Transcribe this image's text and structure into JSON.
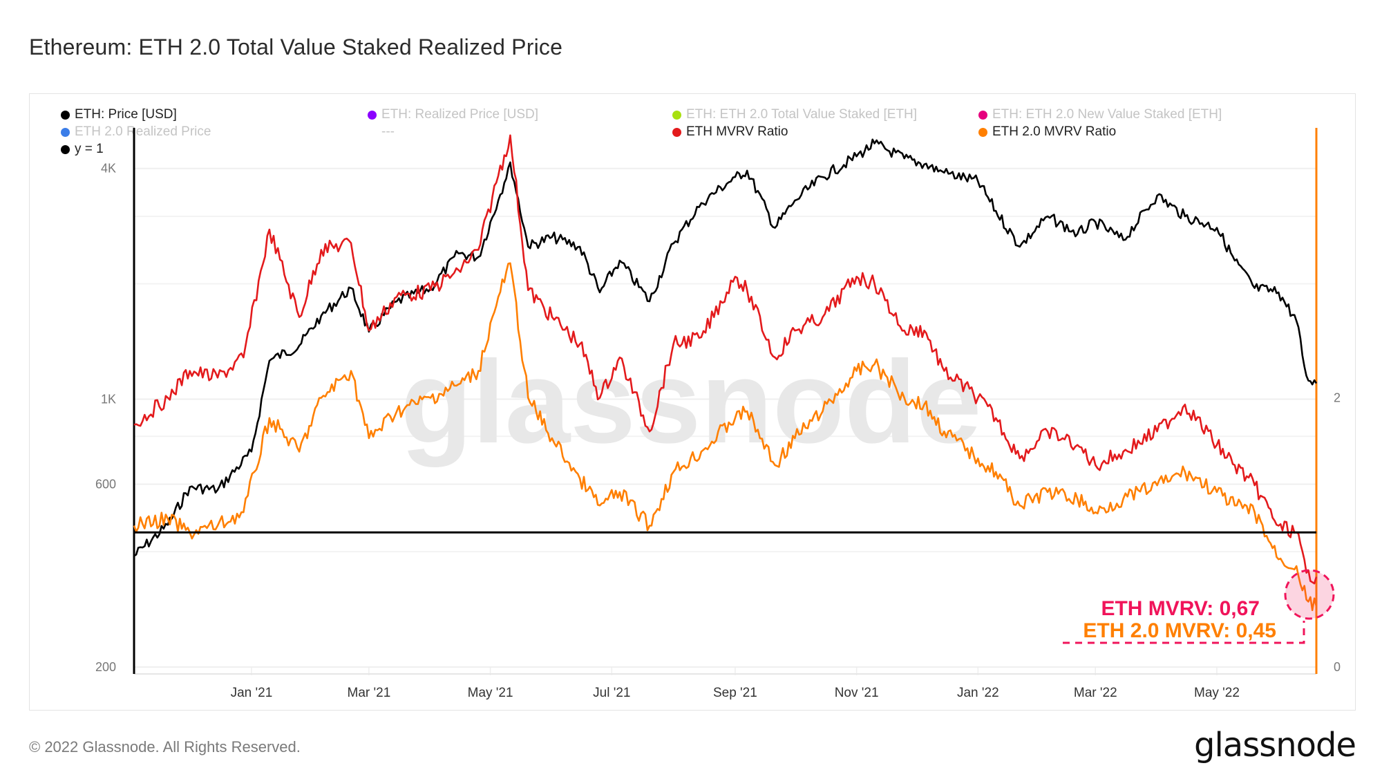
{
  "page": {
    "title": "Ethereum: ETH 2.0 Total Value Staked Realized Price",
    "footer": "© 2022 Glassnode. All Rights Reserved.",
    "logo": "glassnode",
    "watermark": "glassnode"
  },
  "legend": [
    {
      "label": "ETH: Price [USD]",
      "color": "#000000",
      "active": true
    },
    {
      "label": "ETH: Realized Price [USD]",
      "color": "#8b00ff",
      "active": false
    },
    {
      "label": "ETH: ETH 2.0 Total Value Staked [ETH]",
      "color": "#a8e00f",
      "active": false
    },
    {
      "label": "ETH: ETH 2.0 New Value Staked [ETH]",
      "color": "#e6007e",
      "active": false
    },
    {
      "label": "ETH 2.0 Realized Price",
      "color": "#3b7de8",
      "active": false
    },
    {
      "label": "---",
      "color": "",
      "active": false
    },
    {
      "label": "ETH MVRV Ratio",
      "color": "#e31a1c",
      "active": true
    },
    {
      "label": "ETH 2.0 MVRV Ratio",
      "color": "#ff7f00",
      "active": true
    },
    {
      "label": "y = 1",
      "color": "#000000",
      "active": true
    }
  ],
  "annotations": {
    "eth_mvrv": "ETH MVRV: 0,67",
    "eth2_mvrv": "ETH 2.0 MVRV: 0,45",
    "eth_mvrv_color": "#f0145a",
    "eth2_mvrv_color": "#ff7f00"
  },
  "chart_data": {
    "type": "line",
    "title": "Ethereum: ETH 2.0 Total Value Staked Realized Price",
    "x_tick_labels": [
      "Jan '21",
      "Mar '21",
      "May '21",
      "Jul '21",
      "Sep '21",
      "Nov '21",
      "Jan '22",
      "Mar '22",
      "May '22"
    ],
    "x_range": [
      "2020-11-03",
      "2022-06-20"
    ],
    "left_axis": {
      "scale": "log",
      "ticks": [
        200,
        600,
        1000,
        4000
      ],
      "tick_labels": [
        "200",
        "600",
        "1K",
        "4K"
      ],
      "range": [
        200,
        5000
      ]
    },
    "right_axis": {
      "scale": "linear",
      "ticks": [
        0,
        2
      ],
      "tick_labels": [
        "0",
        "2"
      ],
      "range": [
        0,
        3.98
      ]
    },
    "grid": true,
    "legend_position": "top",
    "series": [
      {
        "name": "ETH: Price [USD]",
        "axis": "left",
        "color": "#000000",
        "x": [
          "2020-11-03",
          "2020-11-20",
          "2020-12-01",
          "2020-12-15",
          "2021-01-01",
          "2021-01-10",
          "2021-01-25",
          "2021-02-05",
          "2021-02-20",
          "2021-03-01",
          "2021-03-15",
          "2021-04-01",
          "2021-04-15",
          "2021-04-25",
          "2021-05-05",
          "2021-05-11",
          "2021-05-20",
          "2021-06-01",
          "2021-06-15",
          "2021-06-25",
          "2021-07-05",
          "2021-07-20",
          "2021-08-01",
          "2021-08-15",
          "2021-09-01",
          "2021-09-07",
          "2021-09-21",
          "2021-10-01",
          "2021-10-15",
          "2021-11-01",
          "2021-11-10",
          "2021-11-25",
          "2021-12-05",
          "2021-12-15",
          "2022-01-01",
          "2022-01-10",
          "2022-01-22",
          "2022-02-05",
          "2022-02-20",
          "2022-03-01",
          "2022-03-15",
          "2022-04-01",
          "2022-04-15",
          "2022-05-01",
          "2022-05-10",
          "2022-05-20",
          "2022-06-01",
          "2022-06-10",
          "2022-06-15",
          "2022-06-20"
        ],
        "y": [
          390,
          470,
          590,
          580,
          730,
          1260,
          1380,
          1650,
          1950,
          1500,
          1800,
          1950,
          2400,
          2350,
          3300,
          4150,
          2500,
          2650,
          2500,
          1900,
          2300,
          1800,
          2550,
          3250,
          3800,
          3950,
          2800,
          3300,
          3800,
          4300,
          4650,
          4250,
          4100,
          3900,
          3700,
          3100,
          2500,
          3000,
          2700,
          2900,
          2600,
          3400,
          3000,
          2800,
          2300,
          1950,
          1900,
          1600,
          1150,
          1100
        ]
      },
      {
        "name": "ETH MVRV Ratio",
        "axis": "right",
        "color": "#e31a1c",
        "x": [
          "2020-11-03",
          "2020-11-20",
          "2020-12-01",
          "2020-12-15",
          "2020-12-28",
          "2021-01-10",
          "2021-01-25",
          "2021-02-05",
          "2021-02-20",
          "2021-03-01",
          "2021-03-15",
          "2021-04-01",
          "2021-04-15",
          "2021-04-25",
          "2021-05-05",
          "2021-05-11",
          "2021-05-20",
          "2021-06-01",
          "2021-06-15",
          "2021-06-25",
          "2021-07-05",
          "2021-07-20",
          "2021-08-01",
          "2021-08-15",
          "2021-09-01",
          "2021-09-07",
          "2021-09-21",
          "2021-10-01",
          "2021-10-15",
          "2021-11-01",
          "2021-11-10",
          "2021-11-25",
          "2021-12-05",
          "2021-12-15",
          "2022-01-01",
          "2022-01-10",
          "2022-01-22",
          "2022-02-05",
          "2022-02-20",
          "2022-03-01",
          "2022-03-15",
          "2022-04-01",
          "2022-04-15",
          "2022-05-01",
          "2022-05-10",
          "2022-05-20",
          "2022-06-01",
          "2022-06-10",
          "2022-06-15",
          "2022-06-20"
        ],
        "y": [
          1.8,
          2.0,
          2.2,
          2.15,
          2.3,
          3.25,
          2.6,
          3.1,
          3.15,
          2.5,
          2.75,
          2.8,
          2.95,
          3.1,
          3.65,
          3.95,
          2.8,
          2.6,
          2.4,
          2.0,
          2.3,
          1.75,
          2.4,
          2.45,
          2.9,
          2.8,
          2.3,
          2.5,
          2.6,
          2.9,
          2.85,
          2.5,
          2.5,
          2.2,
          2.0,
          1.85,
          1.55,
          1.75,
          1.65,
          1.5,
          1.6,
          1.75,
          1.95,
          1.65,
          1.5,
          1.35,
          1.05,
          1.0,
          0.7,
          0.67
        ]
      },
      {
        "name": "ETH 2.0 MVRV Ratio",
        "axis": "right",
        "color": "#ff7f00",
        "x": [
          "2020-11-03",
          "2020-11-20",
          "2020-12-01",
          "2020-12-15",
          "2020-12-28",
          "2021-01-10",
          "2021-01-25",
          "2021-02-05",
          "2021-02-20",
          "2021-03-01",
          "2021-03-15",
          "2021-04-01",
          "2021-04-15",
          "2021-04-25",
          "2021-05-05",
          "2021-05-11",
          "2021-05-20",
          "2021-06-01",
          "2021-06-15",
          "2021-06-25",
          "2021-07-05",
          "2021-07-20",
          "2021-08-01",
          "2021-08-15",
          "2021-09-01",
          "2021-09-07",
          "2021-09-21",
          "2021-10-01",
          "2021-10-15",
          "2021-11-01",
          "2021-11-10",
          "2021-11-25",
          "2021-12-05",
          "2021-12-15",
          "2022-01-01",
          "2022-01-10",
          "2022-01-22",
          "2022-02-05",
          "2022-02-20",
          "2022-03-01",
          "2022-03-15",
          "2022-04-01",
          "2022-04-15",
          "2022-05-01",
          "2022-05-10",
          "2022-05-20",
          "2022-06-01",
          "2022-06-10",
          "2022-06-15",
          "2022-06-20"
        ],
        "y": [
          1.05,
          1.1,
          1.0,
          1.05,
          1.15,
          1.85,
          1.6,
          2.0,
          2.2,
          1.7,
          1.9,
          2.0,
          2.1,
          2.2,
          2.75,
          3.0,
          2.0,
          1.7,
          1.4,
          1.2,
          1.3,
          1.05,
          1.45,
          1.6,
          1.85,
          1.9,
          1.5,
          1.7,
          1.9,
          2.2,
          2.25,
          2.0,
          1.95,
          1.75,
          1.55,
          1.45,
          1.2,
          1.3,
          1.25,
          1.15,
          1.25,
          1.35,
          1.45,
          1.3,
          1.2,
          1.15,
          0.8,
          0.75,
          0.5,
          0.45
        ]
      },
      {
        "name": "y = 1",
        "axis": "right",
        "color": "#000000",
        "x": [
          "2020-11-03",
          "2022-06-20"
        ],
        "y": [
          1,
          1
        ]
      }
    ]
  }
}
